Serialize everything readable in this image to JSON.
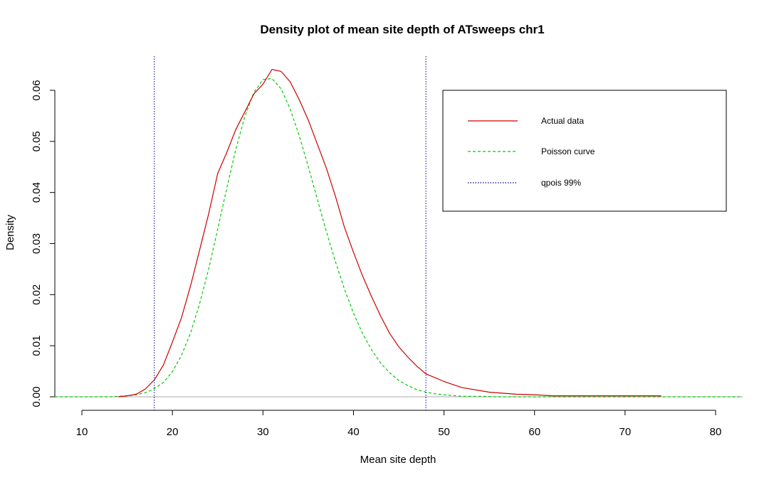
{
  "chart_data": {
    "type": "line",
    "title": "Density plot of mean site depth of ATsweeps chr1",
    "xlabel": "Mean site depth",
    "ylabel": "Density",
    "xlim": [
      10,
      80
    ],
    "ylim": [
      0,
      0.06
    ],
    "xticks": [
      "10",
      "20",
      "30",
      "40",
      "50",
      "60",
      "70",
      "80"
    ],
    "yticks": [
      "0.00",
      "0.01",
      "0.02",
      "0.03",
      "0.04",
      "0.05",
      "0.06"
    ],
    "grid": false,
    "legend_position": "top-right",
    "series": [
      {
        "name": "Actual data",
        "color": "#cc0000",
        "style": "solid",
        "x": [
          14,
          15,
          16,
          17,
          18,
          19,
          20,
          21,
          22,
          23,
          24,
          25,
          26,
          27,
          28,
          29,
          30,
          31,
          32,
          33,
          34,
          35,
          36,
          37,
          38,
          39,
          40,
          41,
          42,
          43,
          44,
          45,
          46,
          47,
          48,
          50,
          52,
          55,
          58,
          60,
          62,
          65,
          70,
          74
        ],
        "y": [
          0.0,
          0.0002,
          0.0005,
          0.0015,
          0.0033,
          0.0062,
          0.0107,
          0.0155,
          0.0217,
          0.0287,
          0.0358,
          0.0437,
          0.0478,
          0.0523,
          0.0558,
          0.0593,
          0.0612,
          0.0641,
          0.0637,
          0.0617,
          0.0582,
          0.0542,
          0.0495,
          0.0448,
          0.0393,
          0.0332,
          0.0283,
          0.0237,
          0.0196,
          0.0158,
          0.0124,
          0.0098,
          0.0078,
          0.006,
          0.0045,
          0.003,
          0.0018,
          0.0009,
          0.0005,
          0.0004,
          0.0002,
          0.0002,
          0.0002,
          0.0002
        ]
      },
      {
        "name": "Poisson curve",
        "color": "#00cc00",
        "style": "dashed",
        "x": [
          7,
          12,
          13,
          14,
          15,
          16,
          17,
          18,
          19,
          20,
          21,
          22,
          23,
          24,
          25,
          26,
          27,
          28,
          29,
          30,
          31,
          32,
          33,
          34,
          35,
          36,
          37,
          38,
          39,
          40,
          41,
          42,
          43,
          44,
          45,
          46,
          47,
          48,
          49,
          50,
          52,
          54,
          56,
          58,
          60,
          65,
          70,
          75,
          83
        ],
        "y": [
          0.0,
          0.0,
          0.0,
          0.0001,
          0.0002,
          0.0004,
          0.0008,
          0.0016,
          0.0028,
          0.0049,
          0.0081,
          0.0125,
          0.0182,
          0.025,
          0.0328,
          0.0408,
          0.0484,
          0.0549,
          0.0596,
          0.0621,
          0.0623,
          0.0603,
          0.0564,
          0.0512,
          0.0451,
          0.0387,
          0.0324,
          0.0265,
          0.0211,
          0.0164,
          0.0124,
          0.0092,
          0.0066,
          0.0047,
          0.0032,
          0.0022,
          0.0014,
          0.0009,
          0.0006,
          0.0004,
          0.0001,
          0.0001,
          0.0,
          0.0,
          0.0,
          0.0,
          0.0,
          0.0,
          0.0
        ]
      }
    ],
    "vlines": [
      {
        "name": "qpois 99%",
        "color": "#000080",
        "style": "dotted",
        "x": [
          18,
          48
        ]
      }
    ],
    "hline": {
      "y": 0,
      "color": "#aaaaaa"
    },
    "legend": [
      {
        "label": "Actual data",
        "color": "#cc0000",
        "style": "solid"
      },
      {
        "label": "Poisson curve",
        "color": "#00cc00",
        "style": "dashed"
      },
      {
        "label": "qpois 99%",
        "color": "#000080",
        "style": "dotted"
      }
    ]
  }
}
